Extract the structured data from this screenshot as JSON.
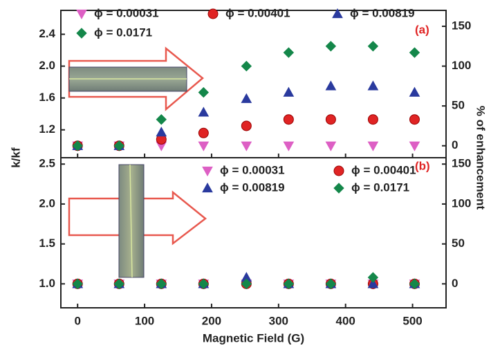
{
  "chart_data": [
    {
      "type": "scatter",
      "annotation": "(a)",
      "ylabel": "k/kf",
      "y2label": "% of enhancement",
      "x": [
        0,
        62,
        125,
        188,
        252,
        315,
        378,
        441,
        503
      ],
      "series": [
        {
          "name": "ϕ = 0.00031",
          "color": "#dd5fc4",
          "marker": "triangle-down",
          "values": [
            1.0,
            1.0,
            1.0,
            1.0,
            1.0,
            1.0,
            1.0,
            1.0,
            1.0
          ]
        },
        {
          "name": "ϕ = 0.00401",
          "color": "#e02424",
          "marker": "circle",
          "values": [
            1.0,
            1.0,
            1.08,
            1.16,
            1.25,
            1.33,
            1.33,
            1.33,
            1.33
          ]
        },
        {
          "name": "ϕ = 0.00819",
          "color": "#2a3a9e",
          "marker": "triangle-up",
          "values": [
            1.0,
            1.0,
            1.17,
            1.42,
            1.59,
            1.67,
            1.75,
            1.75,
            1.67
          ]
        },
        {
          "name": "ϕ = 0.0171",
          "color": "#14874a",
          "marker": "diamond",
          "values": [
            1.0,
            1.0,
            1.33,
            1.67,
            2.0,
            2.17,
            2.25,
            2.25,
            2.17
          ]
        }
      ],
      "xlim": [
        -25,
        550
      ],
      "ylim": [
        0.85,
        2.7
      ],
      "yticks": [
        1.2,
        1.6,
        {
          "value": 2.0,
          "label": "2.0"
        },
        2.4
      ],
      "y2lim": [
        -15,
        170
      ],
      "y2ticks": [
        0,
        50,
        100,
        150
      ]
    },
    {
      "type": "scatter",
      "annotation": "(b)",
      "xlabel": "Magnetic Field (G)",
      "x": [
        0,
        62,
        125,
        188,
        252,
        315,
        378,
        441,
        503
      ],
      "series": [
        {
          "name": "ϕ = 0.00031",
          "color": "#dd5fc4",
          "marker": "triangle-down",
          "values": [
            1.0,
            1.0,
            1.0,
            1.0,
            1.0,
            1.0,
            1.0,
            1.0,
            1.0
          ]
        },
        {
          "name": "ϕ = 0.00401",
          "color": "#e02424",
          "marker": "circle",
          "values": [
            1.0,
            1.0,
            1.0,
            1.0,
            1.0,
            1.0,
            1.0,
            1.0,
            1.0
          ]
        },
        {
          "name": "ϕ = 0.00819",
          "color": "#2a3a9e",
          "marker": "triangle-up",
          "values": [
            1.0,
            1.0,
            1.0,
            1.0,
            1.08,
            1.0,
            1.0,
            1.0,
            1.0
          ]
        },
        {
          "name": "ϕ = 0.0171",
          "color": "#14874a",
          "marker": "diamond",
          "values": [
            1.0,
            1.0,
            1.0,
            1.0,
            1.0,
            1.0,
            1.0,
            1.08,
            1.0
          ]
        }
      ],
      "xlim": [
        -25,
        550
      ],
      "xticks": [
        0,
        100,
        200,
        300,
        400,
        500
      ],
      "ylim": [
        0.7,
        2.58
      ],
      "yticks": [
        {
          "value": 1.0,
          "label": "1.0"
        },
        1.5,
        {
          "value": 2.0,
          "label": "2.0"
        },
        2.5
      ],
      "y2lim": [
        -30,
        158
      ],
      "y2ticks": [
        0,
        50,
        100,
        150
      ]
    }
  ]
}
